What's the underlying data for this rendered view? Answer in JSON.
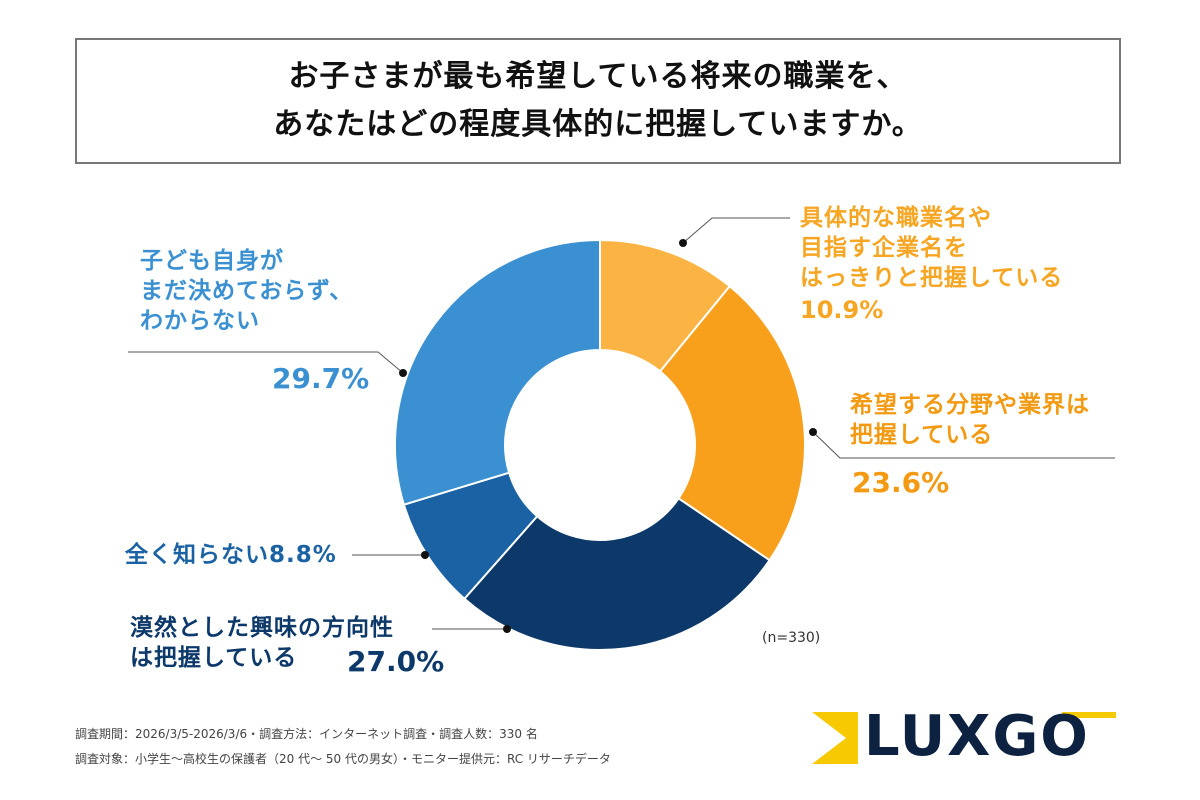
{
  "title": {
    "line1": "お子さまが最も希望している将来の職業を、",
    "line2": "あなたはどの程度具体的に把握していますか。"
  },
  "chart_data": {
    "type": "pie",
    "donut": true,
    "start": "top",
    "direction": "clockwise",
    "sample": "(n=330)",
    "slices": [
      {
        "label": [
          "具体的な職業名や",
          "目指す企業名を",
          "はっきりと把握している"
        ],
        "value": 10.9,
        "value_label": "10.9%",
        "color": "#fbb443"
      },
      {
        "label": [
          "希望する分野や業界は",
          "把握している"
        ],
        "value": 23.6,
        "value_label": "23.6%",
        "color": "#f8a01c"
      },
      {
        "label": [
          "漠然とした興味の方向性",
          "は把握している"
        ],
        "value": 27.0,
        "value_label": "27.0%",
        "color": "#0d386a"
      },
      {
        "label": [
          "全く知らない"
        ],
        "value": 8.8,
        "value_label": "8.8%",
        "color": "#1a62a3"
      },
      {
        "label": [
          "子ども自身が",
          "まだ決めておらず、",
          "わからない"
        ],
        "value": 29.7,
        "value_label": "29.7%",
        "color": "#3a90d1"
      }
    ]
  },
  "footer": {
    "line1": "調査期間：2026/3/5-2026/3/6・調査方法：インターネット調査・調査人数：330 名",
    "line2": "調査対象：小学生〜高校生の保護者（20 代〜 50 代の男女）・モニター提供元：RC リサーチデータ"
  },
  "logo": {
    "text": "LUXGO"
  }
}
